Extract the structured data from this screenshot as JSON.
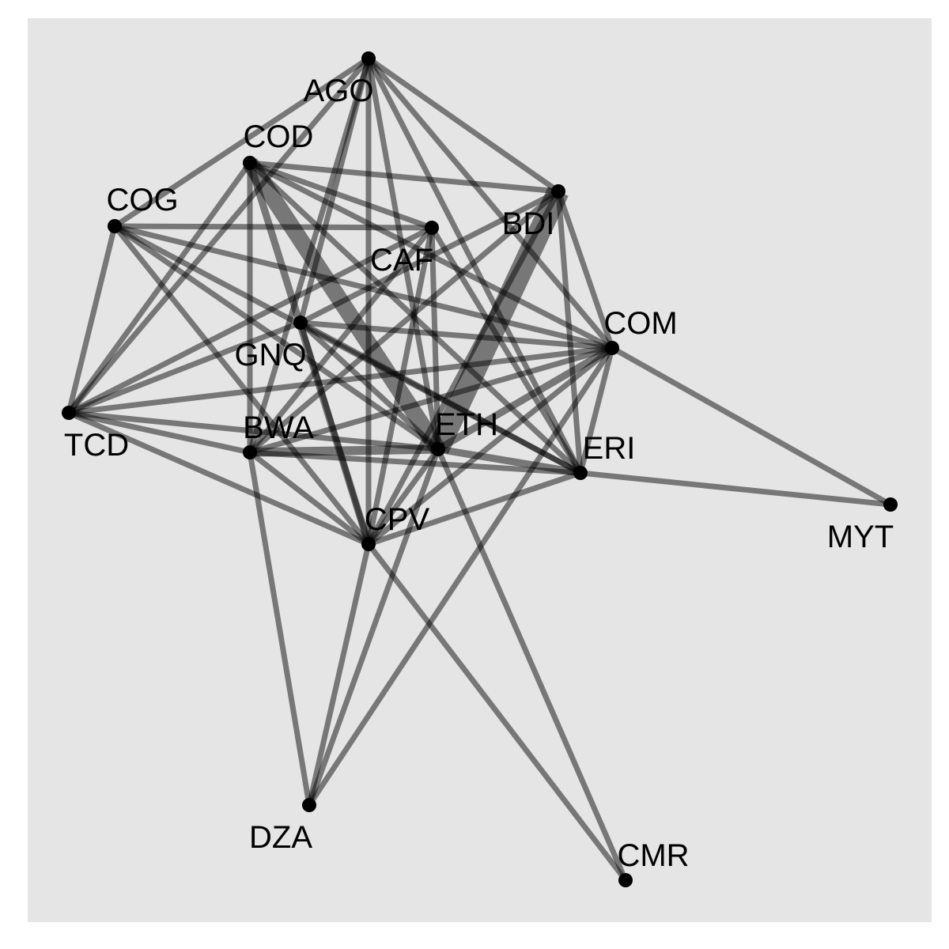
{
  "nodes": [
    {
      "id": "AGO",
      "label": "AGO"
    },
    {
      "id": "COD",
      "label": "COD"
    },
    {
      "id": "COG",
      "label": "COG"
    },
    {
      "id": "BDI",
      "label": "BDI"
    },
    {
      "id": "CAF",
      "label": "CAF"
    },
    {
      "id": "GNQ",
      "label": "GNQ"
    },
    {
      "id": "COM",
      "label": "COM"
    },
    {
      "id": "TCD",
      "label": "TCD"
    },
    {
      "id": "BWA",
      "label": "BWA"
    },
    {
      "id": "ETH",
      "label": "ETH"
    },
    {
      "id": "ERI",
      "label": "ERI"
    },
    {
      "id": "CPV",
      "label": "CPV"
    },
    {
      "id": "MYT",
      "label": "MYT"
    },
    {
      "id": "DZA",
      "label": "DZA"
    },
    {
      "id": "CMR",
      "label": "CMR"
    }
  ],
  "edges": [
    {
      "source": "AGO",
      "target": "COG",
      "weight": 1
    },
    {
      "source": "AGO",
      "target": "GNQ",
      "weight": 1
    },
    {
      "source": "AGO",
      "target": "BDI",
      "weight": 1
    },
    {
      "source": "AGO",
      "target": "COM",
      "weight": 1
    },
    {
      "source": "AGO",
      "target": "ETH",
      "weight": 1
    },
    {
      "source": "AGO",
      "target": "ERI",
      "weight": 1
    },
    {
      "source": "AGO",
      "target": "CPV",
      "weight": 1
    },
    {
      "source": "AGO",
      "target": "BWA",
      "weight": 1
    },
    {
      "source": "AGO",
      "target": "TCD",
      "weight": 1
    },
    {
      "source": "COD",
      "target": "BDI",
      "weight": 1
    },
    {
      "source": "COD",
      "target": "CAF",
      "weight": 1
    },
    {
      "source": "COD",
      "target": "COM",
      "weight": 1
    },
    {
      "source": "COD",
      "target": "ETH",
      "weight": 3
    },
    {
      "source": "COD",
      "target": "CPV",
      "weight": 1.3
    },
    {
      "source": "COD",
      "target": "BWA",
      "weight": 1
    },
    {
      "source": "COD",
      "target": "TCD",
      "weight": 1
    },
    {
      "source": "COD",
      "target": "ERI",
      "weight": 1
    },
    {
      "source": "COG",
      "target": "CAF",
      "weight": 1
    },
    {
      "source": "COG",
      "target": "TCD",
      "weight": 1
    },
    {
      "source": "COG",
      "target": "COM",
      "weight": 1
    },
    {
      "source": "COG",
      "target": "ETH",
      "weight": 1
    },
    {
      "source": "COG",
      "target": "CPV",
      "weight": 1
    },
    {
      "source": "COG",
      "target": "ERI",
      "weight": 1
    },
    {
      "source": "BDI",
      "target": "ETH",
      "weight": 4
    },
    {
      "source": "BDI",
      "target": "COM",
      "weight": 1
    },
    {
      "source": "BDI",
      "target": "ERI",
      "weight": 1
    },
    {
      "source": "BDI",
      "target": "GNQ",
      "weight": 1
    },
    {
      "source": "BDI",
      "target": "BWA",
      "weight": 1
    },
    {
      "source": "BDI",
      "target": "CPV",
      "weight": 1
    },
    {
      "source": "CAF",
      "target": "ETH",
      "weight": 1
    },
    {
      "source": "CAF",
      "target": "ERI",
      "weight": 1
    },
    {
      "source": "CAF",
      "target": "BWA",
      "weight": 1
    },
    {
      "source": "CAF",
      "target": "CPV",
      "weight": 1
    },
    {
      "source": "CAF",
      "target": "TCD",
      "weight": 1
    },
    {
      "source": "GNQ",
      "target": "COM",
      "weight": 1
    },
    {
      "source": "GNQ",
      "target": "CPV",
      "weight": 1
    },
    {
      "source": "GNQ",
      "target": "ETH",
      "weight": 1
    },
    {
      "source": "GNQ",
      "target": "ERI",
      "weight": 1
    },
    {
      "source": "COM",
      "target": "ETH",
      "weight": 1.3
    },
    {
      "source": "COM",
      "target": "MYT",
      "weight": 1
    },
    {
      "source": "COM",
      "target": "BWA",
      "weight": 1
    },
    {
      "source": "COM",
      "target": "CPV",
      "weight": 1
    },
    {
      "source": "COM",
      "target": "TCD",
      "weight": 1
    },
    {
      "source": "COM",
      "target": "DZA",
      "weight": 1
    },
    {
      "source": "COM",
      "target": "ERI",
      "weight": 1
    },
    {
      "source": "TCD",
      "target": "BWA",
      "weight": 1
    },
    {
      "source": "TCD",
      "target": "ETH",
      "weight": 1
    },
    {
      "source": "TCD",
      "target": "CPV",
      "weight": 1
    },
    {
      "source": "TCD",
      "target": "GNQ",
      "weight": 1
    },
    {
      "source": "BWA",
      "target": "ETH",
      "weight": 1.6
    },
    {
      "source": "BWA",
      "target": "ERI",
      "weight": 1
    },
    {
      "source": "BWA",
      "target": "CPV",
      "weight": 1
    },
    {
      "source": "BWA",
      "target": "DZA",
      "weight": 1
    },
    {
      "source": "ETH",
      "target": "ERI",
      "weight": 1.3
    },
    {
      "source": "ETH",
      "target": "CPV",
      "weight": 1
    },
    {
      "source": "ETH",
      "target": "CMR",
      "weight": 1
    },
    {
      "source": "ETH",
      "target": "DZA",
      "weight": 1
    },
    {
      "source": "ERI",
      "target": "MYT",
      "weight": 1
    },
    {
      "source": "ERI",
      "target": "CPV",
      "weight": 1
    },
    {
      "source": "CPV",
      "target": "DZA",
      "weight": 1
    },
    {
      "source": "CPV",
      "target": "CMR",
      "weight": 1
    }
  ]
}
